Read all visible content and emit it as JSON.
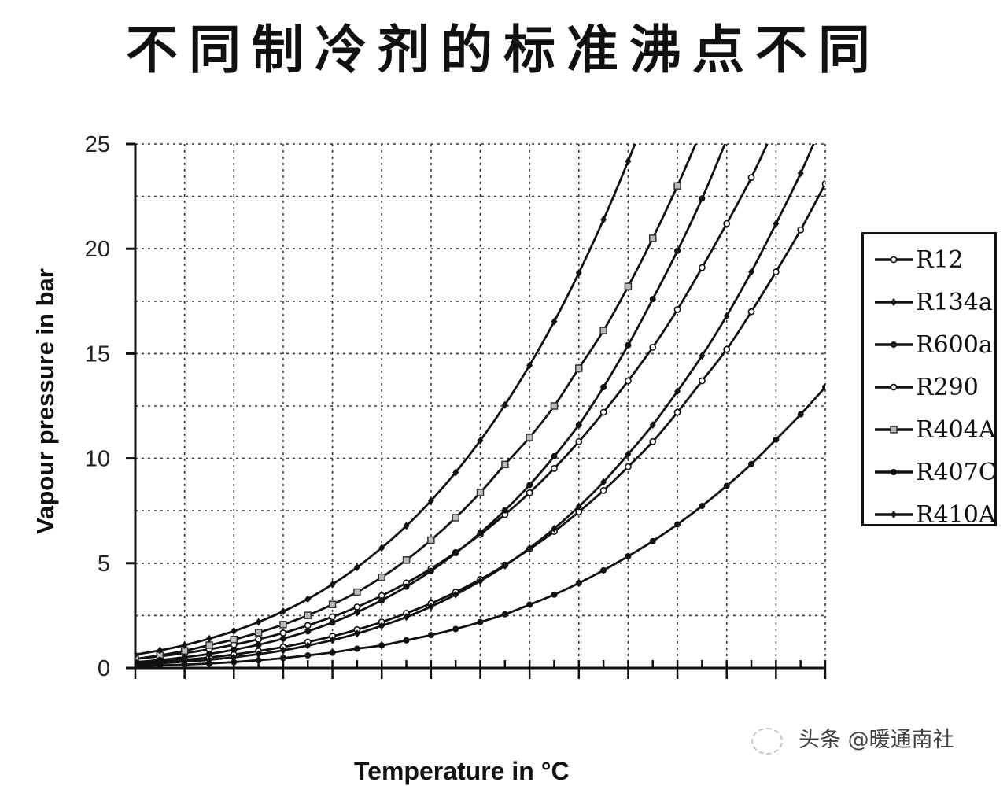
{
  "title": "不同制冷剂的标准沸点不同",
  "watermark": "头条 @暖通南社",
  "chart_data": {
    "type": "line",
    "title": "",
    "xlabel": "Temperature in °C",
    "ylabel": "Vapour pressure in bar",
    "xlim": [
      -60,
      80
    ],
    "ylim": [
      0,
      25
    ],
    "yticks": [
      "0",
      "5",
      "10",
      "15",
      "20",
      "25"
    ],
    "ytick_values": [
      0,
      5,
      10,
      15,
      20,
      25
    ],
    "x_tick_labels_shown": false,
    "grid": true,
    "grid_style": "dotted",
    "legend_placement": "right",
    "line_color": "#111111",
    "x": [
      -60,
      -55,
      -50,
      -45,
      -40,
      -35,
      -30,
      -25,
      -20,
      -15,
      -10,
      -5,
      0,
      5,
      10,
      15,
      20,
      25,
      30,
      35,
      40,
      45,
      50,
      55,
      60,
      65,
      70,
      75,
      80
    ],
    "series": [
      {
        "name": "R12",
        "marker": "open-circle",
        "values": [
          0.23,
          0.3,
          0.39,
          0.5,
          0.64,
          0.81,
          1.0,
          1.24,
          1.51,
          1.83,
          2.19,
          2.61,
          3.08,
          3.62,
          4.23,
          4.91,
          5.67,
          6.51,
          7.45,
          8.47,
          9.6,
          10.8,
          12.2,
          13.7,
          15.2,
          17.0,
          18.9,
          20.9,
          23.1
        ]
      },
      {
        "name": "R134a",
        "marker": "filled-diamond",
        "values": [
          0.16,
          0.22,
          0.3,
          0.39,
          0.51,
          0.66,
          0.84,
          1.07,
          1.33,
          1.64,
          2.01,
          2.43,
          2.93,
          3.5,
          4.15,
          4.88,
          5.72,
          6.65,
          7.7,
          8.87,
          10.2,
          11.6,
          13.2,
          14.9,
          16.8,
          18.9,
          21.2,
          23.6,
          26.3
        ]
      },
      {
        "name": "R600a",
        "marker": "filled-circle",
        "values": [
          0.09,
          0.12,
          0.16,
          0.21,
          0.28,
          0.37,
          0.47,
          0.6,
          0.74,
          0.92,
          1.08,
          1.32,
          1.57,
          1.86,
          2.19,
          2.56,
          3.02,
          3.5,
          4.05,
          4.66,
          5.33,
          6.05,
          6.85,
          7.73,
          8.69,
          9.73,
          10.9,
          12.1,
          13.4
        ]
      },
      {
        "name": "R290",
        "marker": "open-circle",
        "values": [
          0.43,
          0.56,
          0.71,
          0.89,
          1.11,
          1.37,
          1.67,
          2.03,
          2.44,
          2.91,
          3.45,
          4.06,
          4.74,
          5.51,
          6.37,
          7.32,
          8.36,
          9.52,
          10.8,
          12.2,
          13.7,
          15.3,
          17.1,
          19.1,
          21.2,
          23.4,
          25.9,
          null,
          null
        ]
      },
      {
        "name": "R404A",
        "marker": "grey-square",
        "values": [
          0.43,
          0.6,
          0.82,
          1.09,
          1.36,
          1.69,
          2.07,
          2.51,
          3.03,
          3.62,
          4.33,
          5.15,
          6.1,
          7.17,
          8.37,
          9.71,
          11.0,
          12.5,
          14.3,
          16.1,
          18.2,
          20.5,
          23.0,
          25.7,
          null,
          null,
          null,
          null,
          null
        ]
      },
      {
        "name": "R407C",
        "marker": "filled-circle",
        "values": [
          0.28,
          0.38,
          0.51,
          0.67,
          0.87,
          1.11,
          1.4,
          1.75,
          2.17,
          2.66,
          3.23,
          3.88,
          4.63,
          5.48,
          6.44,
          7.52,
          8.73,
          10.1,
          11.6,
          13.4,
          15.4,
          17.6,
          19.9,
          22.4,
          25.2,
          null,
          null,
          null,
          null
        ]
      },
      {
        "name": "R410A",
        "marker": "filled-diamond",
        "values": [
          0.64,
          0.84,
          1.09,
          1.4,
          1.76,
          2.19,
          2.7,
          3.29,
          3.99,
          4.8,
          5.73,
          6.78,
          7.98,
          9.33,
          10.85,
          12.55,
          14.44,
          16.53,
          18.85,
          21.39,
          24.18,
          27.2,
          null,
          null,
          null,
          null,
          null,
          null,
          null
        ]
      }
    ]
  }
}
